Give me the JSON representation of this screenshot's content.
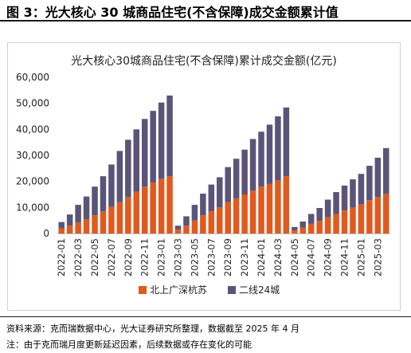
{
  "figure": {
    "title": "图 3：光大核心 30 城商品住宅(不含保障)成交金额累计值",
    "source_note": "资料来源：克而瑞数据中心，光大证券研究所整理，数据截至 2025 年 4 月",
    "footnote": "注：由于克而瑞月度更新延迟因素，后续数据或存在变化的可能"
  },
  "colors": {
    "series_1": "#e05a1e",
    "series_2": "#5a5578"
  },
  "chart_data": {
    "type": "bar",
    "stacked": true,
    "title": "光大核心30城商品住宅(不含保障)累计成交金额(亿元)",
    "legend_position": "bottom",
    "grid": false,
    "ylim": [
      0,
      60000
    ],
    "yticks": [
      "0",
      "10,000",
      "20,000",
      "30,000",
      "40,000",
      "50,000",
      "60,000"
    ],
    "x_tick_labels": [
      "2022-01",
      "2022-03",
      "2022-05",
      "2022-07",
      "2022-09",
      "2022-11",
      "2023-01",
      "2023-03",
      "2023-05",
      "2023-07",
      "2023-09",
      "2023-11",
      "2024-01",
      "2024-03",
      "2024-05",
      "2024-07",
      "2024-09",
      "2024-11",
      "2025-01",
      "2025-03"
    ],
    "categories": [
      "2022-01",
      "2022-02",
      "2022-03",
      "2022-04",
      "2022-05",
      "2022-06",
      "2022-07",
      "2022-08",
      "2022-09",
      "2022-10",
      "2022-11",
      "2022-12",
      "2023-01",
      "2023-02",
      "2023-03",
      "2023-04",
      "2023-05",
      "2023-06",
      "2023-07",
      "2023-08",
      "2023-09",
      "2023-10",
      "2023-11",
      "2023-12",
      "2024-01",
      "2024-02",
      "2024-03",
      "2024-04",
      "2024-05",
      "2024-06",
      "2024-07",
      "2024-08",
      "2024-09",
      "2024-10",
      "2024-11",
      "2024-12",
      "2025-01",
      "2025-02",
      "2025-03",
      "2025-04"
    ],
    "series": [
      {
        "name": "北上广深杭苏",
        "values": [
          2000,
          3000,
          4300,
          5500,
          7000,
          8500,
          10200,
          12000,
          14000,
          16000,
          18000,
          19500,
          21000,
          22000,
          1500,
          3000,
          5000,
          7000,
          8500,
          10000,
          12000,
          13500,
          15000,
          16500,
          18000,
          19000,
          20500,
          22000,
          1200,
          2300,
          3700,
          4800,
          6200,
          7500,
          8800,
          10000,
          11200,
          12800,
          14000,
          15200
        ]
      },
      {
        "name": "二线24城",
        "values": [
          2400,
          4300,
          6700,
          8700,
          11000,
          13500,
          16300,
          19700,
          22000,
          24000,
          26000,
          27600,
          29300,
          31000,
          1500,
          3600,
          6000,
          8300,
          10300,
          11600,
          13500,
          15200,
          17200,
          19800,
          21100,
          22800,
          24500,
          26400,
          1300,
          2300,
          3800,
          5000,
          6800,
          8400,
          9600,
          10800,
          11700,
          13200,
          15100,
          17600
        ]
      }
    ]
  }
}
